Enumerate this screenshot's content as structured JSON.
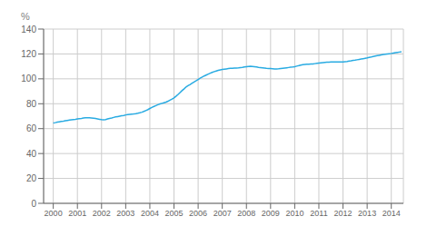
{
  "chart_data": {
    "type": "line",
    "annotations": [
      "%"
    ],
    "color": "#29abe2",
    "grid": true,
    "xlim": [
      1999.6,
      2014.5
    ],
    "ylim": [
      0,
      140
    ],
    "xticks": [
      2000,
      2001,
      2002,
      2003,
      2004,
      2005,
      2006,
      2007,
      2008,
      2009,
      2010,
      2011,
      2012,
      2013,
      2014
    ],
    "yticks": [
      0,
      20,
      40,
      60,
      80,
      100,
      120,
      140
    ],
    "x": [
      2000.0,
      2000.08,
      2000.17,
      2000.25,
      2000.33,
      2000.42,
      2000.5,
      2000.58,
      2000.67,
      2000.75,
      2000.83,
      2000.92,
      2001.0,
      2001.08,
      2001.17,
      2001.25,
      2001.33,
      2001.42,
      2001.5,
      2001.58,
      2001.67,
      2001.75,
      2001.83,
      2001.92,
      2002.0,
      2002.08,
      2002.17,
      2002.25,
      2002.33,
      2002.42,
      2002.5,
      2002.58,
      2002.67,
      2002.75,
      2002.83,
      2002.92,
      2003.0,
      2003.08,
      2003.17,
      2003.25,
      2003.33,
      2003.42,
      2003.5,
      2003.58,
      2003.67,
      2003.75,
      2003.83,
      2003.92,
      2004.0,
      2004.08,
      2004.17,
      2004.25,
      2004.33,
      2004.42,
      2004.5,
      2004.58,
      2004.67,
      2004.75,
      2004.83,
      2004.92,
      2005.0,
      2005.08,
      2005.17,
      2005.25,
      2005.33,
      2005.42,
      2005.5,
      2005.58,
      2005.67,
      2005.75,
      2005.83,
      2005.92,
      2006.0,
      2006.08,
      2006.17,
      2006.25,
      2006.33,
      2006.42,
      2006.5,
      2006.58,
      2006.67,
      2006.75,
      2006.83,
      2006.92,
      2007.0,
      2007.08,
      2007.17,
      2007.25,
      2007.33,
      2007.42,
      2007.5,
      2007.58,
      2007.67,
      2007.75,
      2007.83,
      2007.92,
      2008.0,
      2008.08,
      2008.17,
      2008.25,
      2008.33,
      2008.42,
      2008.5,
      2008.58,
      2008.67,
      2008.75,
      2008.83,
      2008.92,
      2009.0,
      2009.08,
      2009.17,
      2009.25,
      2009.33,
      2009.42,
      2009.5,
      2009.58,
      2009.67,
      2009.75,
      2009.83,
      2009.92,
      2010.0,
      2010.08,
      2010.17,
      2010.25,
      2010.33,
      2010.42,
      2010.5,
      2010.58,
      2010.67,
      2010.75,
      2010.83,
      2010.92,
      2011.0,
      2011.08,
      2011.17,
      2011.25,
      2011.33,
      2011.42,
      2011.5,
      2011.58,
      2011.67,
      2011.75,
      2011.83,
      2011.92,
      2012.0,
      2012.08,
      2012.17,
      2012.25,
      2012.33,
      2012.42,
      2012.5,
      2012.58,
      2012.67,
      2012.75,
      2012.83,
      2012.92,
      2013.0,
      2013.08,
      2013.17,
      2013.25,
      2013.33,
      2013.42,
      2013.5,
      2013.58,
      2013.67,
      2013.75,
      2013.83,
      2013.92,
      2014.0,
      2014.08,
      2014.17,
      2014.25,
      2014.33,
      2014.42
    ],
    "values": [
      64.5,
      64.8,
      65.2,
      65.5,
      65.8,
      66.0,
      66.3,
      66.6,
      66.9,
      67.1,
      67.3,
      67.5,
      67.8,
      68.0,
      68.2,
      68.5,
      68.7,
      68.8,
      68.7,
      68.5,
      68.3,
      68.1,
      67.8,
      67.5,
      67.2,
      67.0,
      67.3,
      67.8,
      68.2,
      68.6,
      69.0,
      69.4,
      69.7,
      70.0,
      70.3,
      70.6,
      71.0,
      71.3,
      71.5,
      71.7,
      71.8,
      72.0,
      72.3,
      72.7,
      73.2,
      73.8,
      74.5,
      75.3,
      76.2,
      77.0,
      77.8,
      78.5,
      79.2,
      79.8,
      80.3,
      80.8,
      81.3,
      82.0,
      82.8,
      83.7,
      84.7,
      86.0,
      87.5,
      89.0,
      90.5,
      92.0,
      93.5,
      94.5,
      95.5,
      96.5,
      97.5,
      98.5,
      99.5,
      100.5,
      101.5,
      102.3,
      103.0,
      103.8,
      104.5,
      105.2,
      105.8,
      106.3,
      106.8,
      107.2,
      107.5,
      107.8,
      108.0,
      108.2,
      108.4,
      108.5,
      108.6,
      108.7,
      108.8,
      109.0,
      109.2,
      109.5,
      109.8,
      110.0,
      110.1,
      110.0,
      109.8,
      109.5,
      109.2,
      109.0,
      108.8,
      108.6,
      108.4,
      108.3,
      108.2,
      108.1,
      108.0,
      108.0,
      108.1,
      108.3,
      108.5,
      108.7,
      108.9,
      109.1,
      109.3,
      109.5,
      109.8,
      110.2,
      110.6,
      111.0,
      111.3,
      111.5,
      111.7,
      111.8,
      111.9,
      112.0,
      112.2,
      112.4,
      112.6,
      112.8,
      113.0,
      113.2,
      113.3,
      113.4,
      113.5,
      113.6,
      113.6,
      113.6,
      113.5,
      113.5,
      113.6,
      113.8,
      114.0,
      114.3,
      114.5,
      114.8,
      115.0,
      115.3,
      115.6,
      115.9,
      116.2,
      116.5,
      116.8,
      117.2,
      117.6,
      118.0,
      118.3,
      118.6,
      118.9,
      119.2,
      119.5,
      119.8,
      120.0,
      120.2,
      120.4,
      120.7,
      121.0,
      121.3,
      121.5,
      121.7
    ]
  }
}
